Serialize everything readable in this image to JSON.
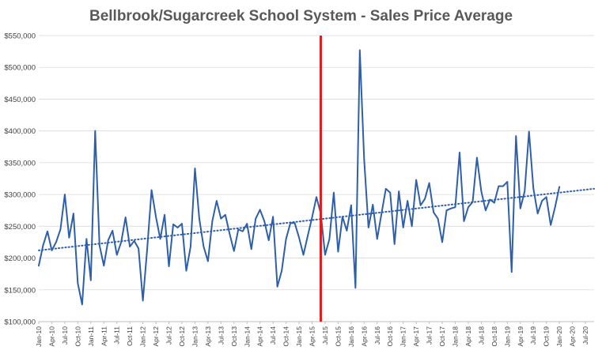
{
  "chart_data": {
    "type": "line",
    "title": "Bellbrook/Sugarcreek School System - Sales Price Average",
    "xlabel": "",
    "ylabel": "",
    "ylim": [
      100000,
      550000
    ],
    "yticks": [
      100000,
      150000,
      200000,
      250000,
      300000,
      350000,
      400000,
      450000,
      500000,
      550000
    ],
    "ytick_labels": [
      "$100,000",
      "$150,000",
      "$200,000",
      "$250,000",
      "$300,000",
      "$350,000",
      "$400,000",
      "$450,000",
      "$500,000",
      "$550,000"
    ],
    "grid": true,
    "legend": "none",
    "x_tick_labels": [
      "Jan-10",
      "Apr-10",
      "Jul-10",
      "Oct-10",
      "Jan-11",
      "Apr-11",
      "Jul-11",
      "Oct-11",
      "Jan-12",
      "Apr-12",
      "Jul-12",
      "Oct-12",
      "Jan-13",
      "Apr-13",
      "Jul-13",
      "Oct-13",
      "Jan-14",
      "Apr-14",
      "Jul-14",
      "Oct-14",
      "Jan-15",
      "Apr-15",
      "Jul-15",
      "Oct-15",
      "Jan-16",
      "Apr-16",
      "Jul-16",
      "Oct-16",
      "Jan-17",
      "Apr-17",
      "Jul-17",
      "Oct-17",
      "Jan-18",
      "Apr-18",
      "Jul-18",
      "Oct-18",
      "Jan-19",
      "Apr-19",
      "Jul-19",
      "Oct-19",
      "Jan-20",
      "Apr-20",
      "Jul-20"
    ],
    "x_start": "Jan-10",
    "x_end": "Sep-20",
    "series": [
      {
        "color": "#2e5fac",
        "style": "solid",
        "values": [
          188000,
          220000,
          242000,
          212000,
          225000,
          245000,
          300000,
          232000,
          270000,
          160000,
          127000,
          230000,
          165000,
          400000,
          220000,
          188000,
          228000,
          243000,
          205000,
          225000,
          264000,
          218000,
          227000,
          215000,
          133000,
          215000,
          307000,
          265000,
          230000,
          268000,
          187000,
          253000,
          248000,
          254000,
          180000,
          218000,
          341000,
          262000,
          218000,
          195000,
          258000,
          290000,
          262000,
          268000,
          238000,
          211000,
          245000,
          242000,
          254000,
          214000,
          262000,
          276000,
          258000,
          228000,
          265000,
          155000,
          180000,
          230000,
          255000,
          255000,
          232000,
          205000,
          235000,
          264000,
          296000,
          270000,
          205000,
          230000,
          303000,
          210000,
          265000,
          243000,
          283000,
          153000,
          527000,
          355000,
          248000,
          284000,
          230000,
          270000,
          309000,
          303000,
          222000,
          305000,
          248000,
          290000,
          250000,
          323000,
          283000,
          293000,
          318000,
          272000,
          262000,
          225000,
          275000,
          278000,
          280000,
          366000,
          258000,
          280000,
          288000,
          358000,
          305000,
          275000,
          292000,
          287000,
          313000,
          313000,
          320000,
          178000,
          392000,
          278000,
          305000,
          399000,
          310000,
          270000,
          290000,
          296000,
          252000,
          280000,
          312000
        ]
      },
      {
        "color": "#2e5fac",
        "style": "dotted",
        "values": [
          212000,
          309000
        ],
        "x": [
          "Jan-10",
          "Sep-20"
        ]
      }
    ],
    "annotations": [
      {
        "type": "vertical-line",
        "x": "Jun-15",
        "color": "#e01e1e"
      }
    ]
  }
}
